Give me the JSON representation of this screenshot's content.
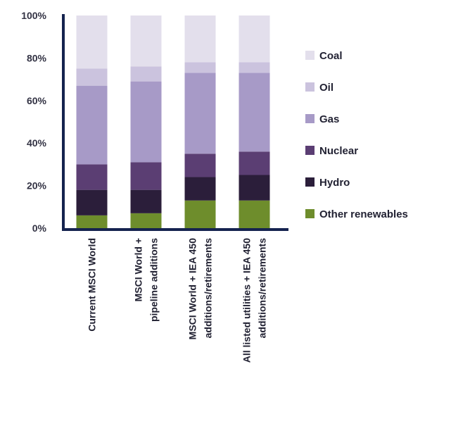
{
  "chart_data": {
    "type": "bar",
    "stacked": true,
    "title": "",
    "xlabel": "",
    "ylabel": "",
    "ylim": [
      0,
      100
    ],
    "y_ticks": [
      "0%",
      "20%",
      "40%",
      "60%",
      "80%",
      "100%"
    ],
    "grid": false,
    "legend_position": "right",
    "categories": [
      [
        "Current MSCI World"
      ],
      [
        "MSCI World +",
        "pipeline additions"
      ],
      [
        "MSCI World + IEA 450",
        "additions/retirements"
      ],
      [
        "All listed utilities + IEA 450",
        "additions/retirements"
      ]
    ],
    "series": [
      {
        "name": "Other renewables",
        "color": "#6e8d2c",
        "values": [
          6,
          7,
          13,
          13
        ]
      },
      {
        "name": "Hydro",
        "color": "#2b1e3a",
        "values": [
          12,
          11,
          11,
          12
        ]
      },
      {
        "name": "Nuclear",
        "color": "#5b3e73",
        "values": [
          12,
          13,
          11,
          11
        ]
      },
      {
        "name": "Gas",
        "color": "#a79ac7",
        "values": [
          37,
          38,
          38,
          37
        ]
      },
      {
        "name": "Oil",
        "color": "#cbc3de",
        "values": [
          8,
          7,
          5,
          5
        ]
      },
      {
        "name": "Coal",
        "color": "#e3dfec",
        "values": [
          25,
          24,
          22,
          22
        ]
      }
    ]
  }
}
